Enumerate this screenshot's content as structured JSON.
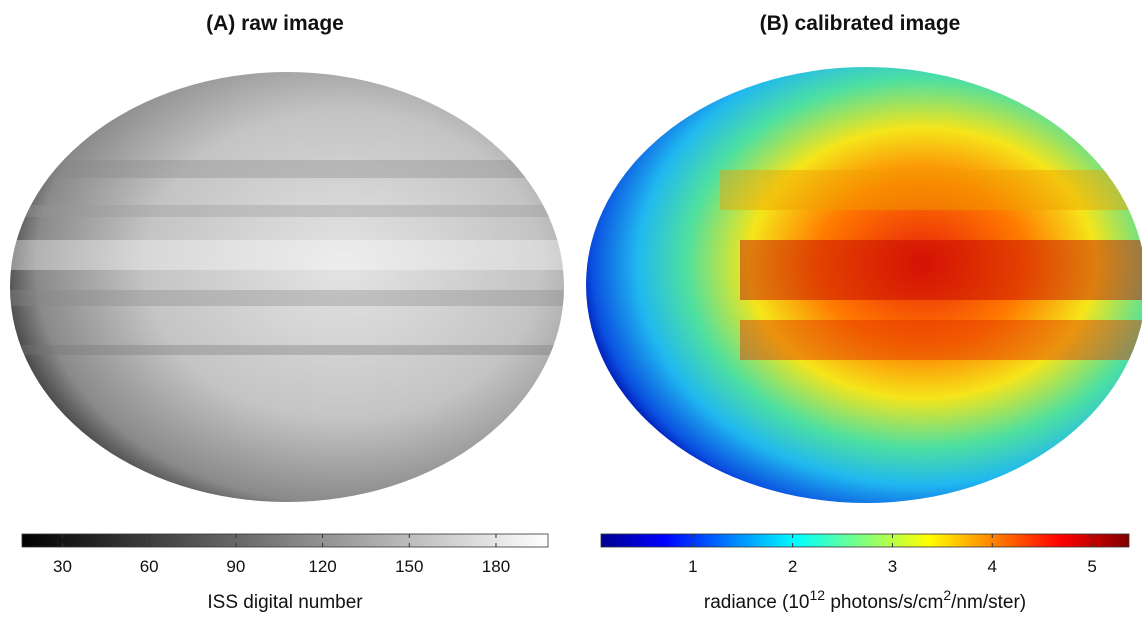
{
  "panels": [
    {
      "title": "(A) raw image",
      "colorbar": {
        "lim": [
          16,
          198
        ],
        "ticks": [
          30,
          60,
          90,
          120,
          150,
          180
        ],
        "label": [
          "ISS digital number"
        ],
        "colormap": "gray"
      }
    },
    {
      "title": "(B) calibrated image",
      "colorbar": {
        "lim": [
          0.08,
          5.37
        ],
        "ticks": [
          1,
          2,
          3,
          4,
          5
        ],
        "label": [
          "radiance (10",
          "12",
          " photons/s/cm",
          "2",
          "/nm/ster)"
        ],
        "colormap": "jet"
      }
    }
  ]
}
